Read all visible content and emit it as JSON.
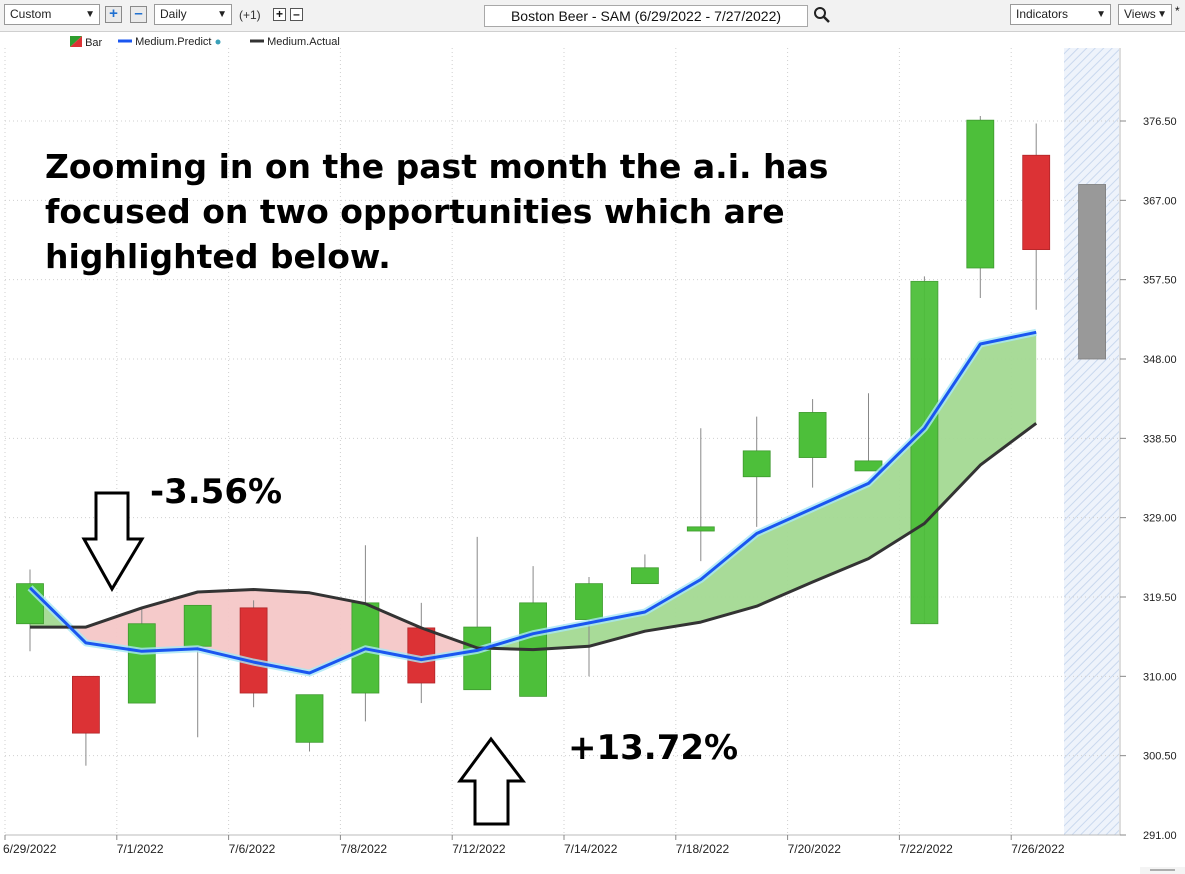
{
  "toolbar": {
    "range_select": "Custom",
    "interval_select": "Daily",
    "step_label": "(+1)",
    "chart_title": "Boston Beer - SAM (6/29/2022 - 7/27/2022)",
    "indicators_label": "Indicators",
    "views_label": "Views",
    "modified_mark": "*"
  },
  "legend": [
    {
      "label": "Bar",
      "color": "#2e9d2e"
    },
    {
      "label": "Medium.Predict",
      "color": "#1a56f0"
    },
    {
      "label": "Medium.Actual",
      "color": "#333333"
    }
  ],
  "annotations": {
    "headline": "Zooming in on the past month the a.i. has focused on two opportunities which are highlighted below.",
    "sell_change": "-3.56%",
    "buy_change": "+13.72%"
  },
  "colors": {
    "up": "#4dbf3a",
    "down": "#dc3235",
    "forecast": "#999999",
    "predict": "#1a56f0",
    "actual": "#333333",
    "fill_bearish": "#f4c7c7",
    "fill_bullish": "#a3d992"
  },
  "chart_data": {
    "type": "candlestick",
    "title": "Boston Beer - SAM (6/29/2022 - 7/27/2022)",
    "ylim": [
      291.0,
      379.0
    ],
    "yticks": [
      291.0,
      300.5,
      310.0,
      319.5,
      329.0,
      338.5,
      348.0,
      357.5,
      367.0,
      376.5
    ],
    "ytick_labels": [
      "291.00",
      "300.50",
      "310.00",
      "319.50",
      "329.00",
      "338.50",
      "348.00",
      "357.50",
      "367.00",
      "376.50"
    ],
    "xtick_labels": [
      "6/29/2022",
      "7/1/2022",
      "7/6/2022",
      "7/8/2022",
      "7/12/2022",
      "7/14/2022",
      "7/18/2022",
      "7/20/2022",
      "7/22/2022",
      "7/26/2022"
    ],
    "xtick_bar_index": [
      0,
      2,
      4,
      6,
      8,
      10,
      12,
      14,
      16,
      18
    ],
    "grid": true,
    "legend_position": "top-left",
    "candles": [
      {
        "open": 316.3,
        "high": 322.8,
        "low": 313.0,
        "close": 321.1
      },
      {
        "open": 310.0,
        "high": 310.0,
        "low": 299.3,
        "close": 303.2
      },
      {
        "open": 306.8,
        "high": 318.0,
        "low": 306.8,
        "close": 316.3
      },
      {
        "open": 313.6,
        "high": 318.5,
        "low": 302.7,
        "close": 318.5
      },
      {
        "open": 318.2,
        "high": 319.1,
        "low": 306.3,
        "close": 308.0
      },
      {
        "open": 302.1,
        "high": 307.8,
        "low": 301.0,
        "close": 307.8
      },
      {
        "open": 308.0,
        "high": 325.7,
        "low": 304.6,
        "close": 318.8
      },
      {
        "open": 315.8,
        "high": 318.8,
        "low": 306.8,
        "close": 309.2
      },
      {
        "open": 308.4,
        "high": 326.7,
        "low": 308.4,
        "close": 315.9
      },
      {
        "open": 307.6,
        "high": 323.2,
        "low": 307.6,
        "close": 318.8
      },
      {
        "open": 316.8,
        "high": 321.9,
        "low": 310.0,
        "close": 321.1
      },
      {
        "open": 321.1,
        "high": 324.6,
        "low": 321.1,
        "close": 323.0
      },
      {
        "open": 327.4,
        "high": 339.7,
        "low": 323.8,
        "close": 327.9
      },
      {
        "open": 333.9,
        "high": 341.1,
        "low": 327.9,
        "close": 337.0
      },
      {
        "open": 336.2,
        "high": 343.2,
        "low": 332.6,
        "close": 341.6
      },
      {
        "open": 334.6,
        "high": 343.9,
        "low": 334.6,
        "close": 335.8
      },
      {
        "open": 316.3,
        "high": 357.9,
        "low": 316.3,
        "close": 357.3
      },
      {
        "open": 358.9,
        "high": 377.1,
        "low": 355.3,
        "close": 376.6
      },
      {
        "open": 372.4,
        "high": 376.2,
        "low": 353.9,
        "close": 361.1
      },
      {
        "open": 348.0,
        "high": 368.9,
        "low": 348.0,
        "close": 368.9
      }
    ],
    "forecast_bar_index": 19,
    "series": [
      {
        "name": "Medium.Predict",
        "values": [
          320.6,
          314.0,
          313.0,
          313.3,
          311.7,
          310.4,
          313.3,
          312.0,
          313.1,
          315.1,
          316.4,
          317.7,
          321.6,
          327.1,
          330.1,
          333.1,
          339.7,
          349.8,
          351.2
        ]
      },
      {
        "name": "Medium.Actual",
        "values": [
          315.9,
          315.9,
          318.2,
          320.1,
          320.4,
          320.0,
          318.7,
          315.8,
          313.4,
          313.2,
          313.6,
          315.4,
          316.5,
          318.4,
          321.3,
          324.1,
          328.3,
          335.3,
          340.3
        ]
      }
    ]
  }
}
